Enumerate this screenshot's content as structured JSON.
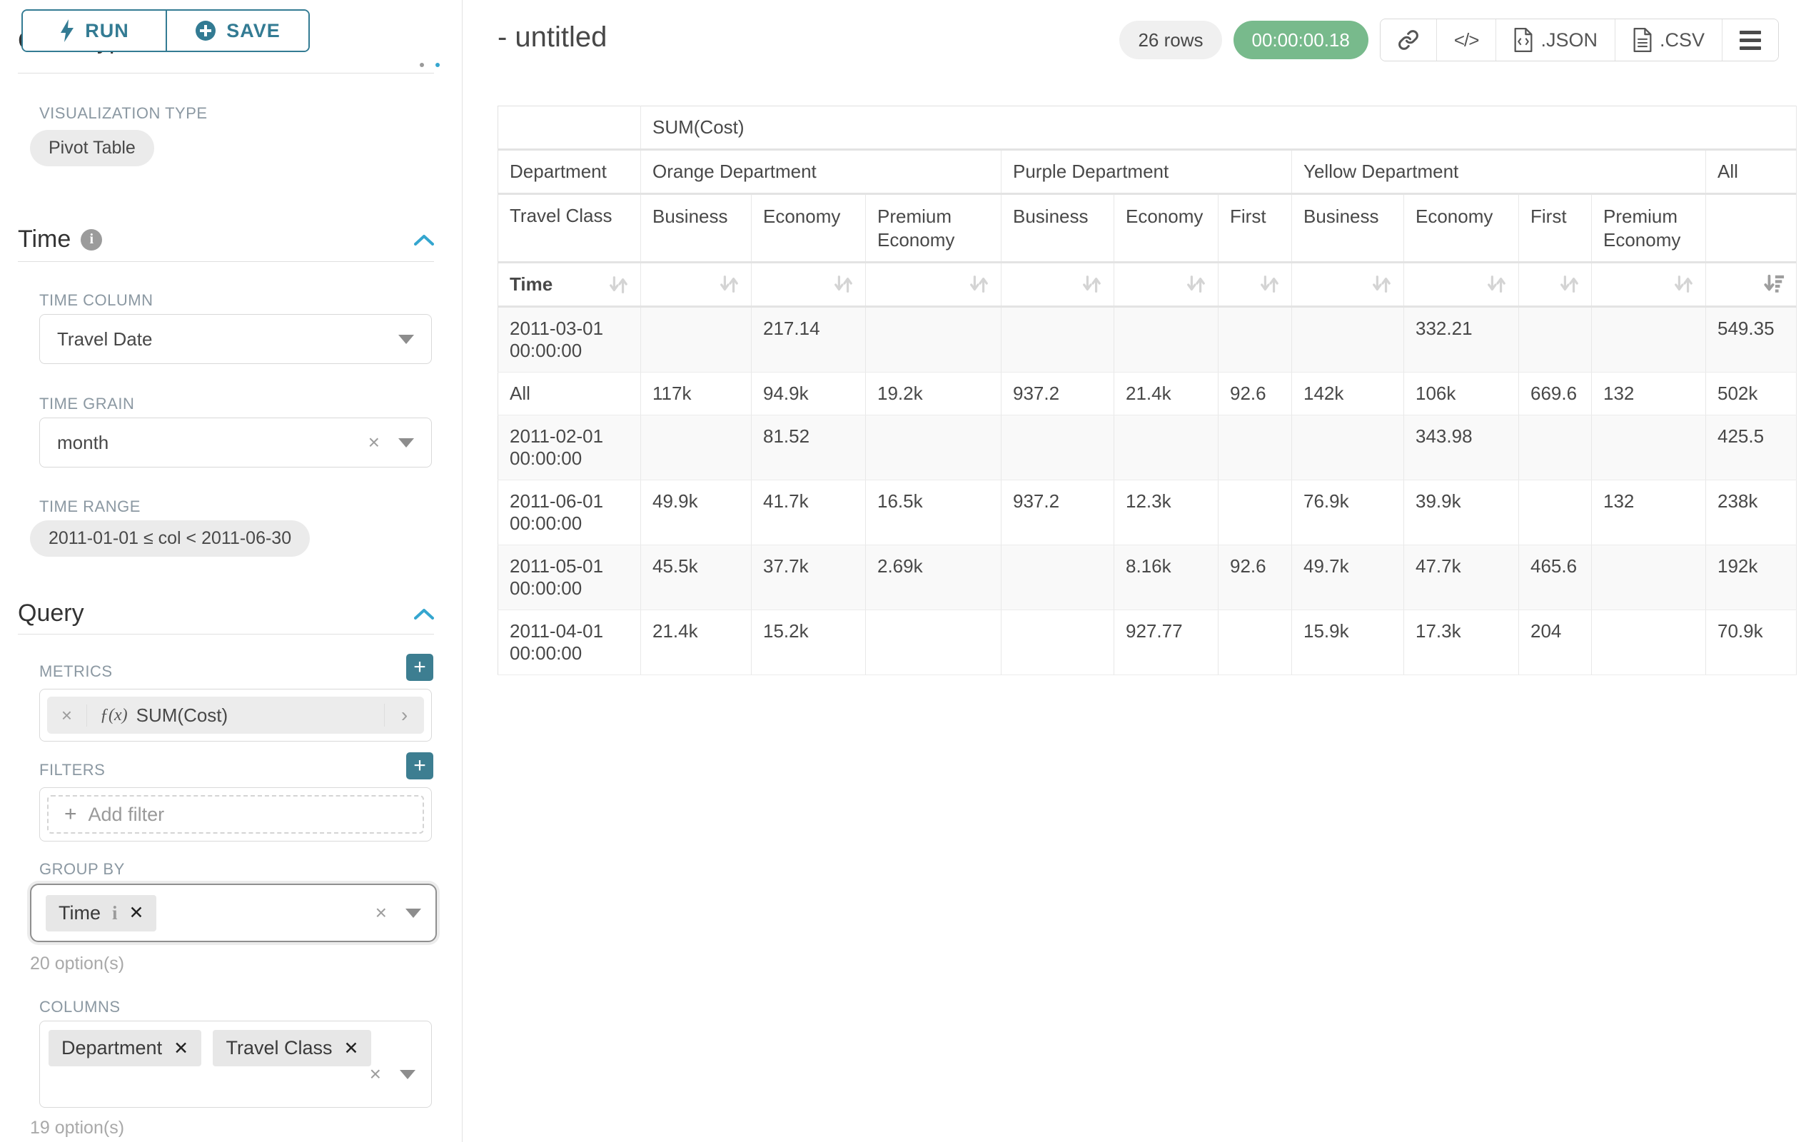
{
  "sidebar": {
    "run_button": "RUN",
    "save_button": "SAVE",
    "chart_type_heading": "Chart Type",
    "visualization_type_label": "VISUALIZATION TYPE",
    "visualization_type_value": "Pivot Table",
    "time": {
      "heading": "Time",
      "time_column_label": "TIME COLUMN",
      "time_column_value": "Travel Date",
      "time_grain_label": "TIME GRAIN",
      "time_grain_value": "month",
      "time_range_label": "TIME RANGE",
      "time_range_value": "2011-01-01 ≤ col < 2011-06-30"
    },
    "query": {
      "heading": "Query",
      "metrics_label": "METRICS",
      "metric_prefix": "ƒ(x)",
      "metric_name": "SUM(Cost)",
      "filters_label": "FILTERS",
      "add_filter_placeholder": "Add filter",
      "group_by_label": "GROUP BY",
      "group_by_chips": [
        "Time"
      ],
      "group_by_hint": "20 option(s)",
      "columns_label": "COLUMNS",
      "columns_chips": [
        "Department",
        "Travel Class"
      ],
      "columns_hint": "19 option(s)"
    }
  },
  "header": {
    "title": "- untitled",
    "rows_badge": "26 rows",
    "timer_badge": "00:00:00.18",
    "export_json_label": ".JSON",
    "export_csv_label": ".CSV"
  },
  "colors": {
    "accent_teal": "#337b93",
    "plus_teal": "#3d7e91",
    "chevron_blue": "#35a6cf",
    "timer_green": "#78ba8c"
  },
  "chart_data": {
    "type": "table",
    "metric_header": "SUM(Cost)",
    "corner": {
      "row2": "Department",
      "row3": "Travel Class",
      "row4": "Time"
    },
    "column_groups": [
      {
        "label": "Orange Department",
        "cols": [
          "Business",
          "Economy",
          "Premium Economy"
        ]
      },
      {
        "label": "Purple Department",
        "cols": [
          "Business",
          "Economy",
          "First"
        ]
      },
      {
        "label": "Yellow Department",
        "cols": [
          "Business",
          "Economy",
          "First",
          "Premium Economy"
        ]
      },
      {
        "label": "All",
        "cols": [
          ""
        ]
      }
    ],
    "sorted_leaf_index": 10,
    "sort_direction": "descending",
    "rows": [
      {
        "label": "2011-03-01 00:00:00",
        "values": [
          "",
          "217.14",
          "",
          "",
          "",
          "",
          "",
          "332.21",
          "",
          "",
          "549.35"
        ]
      },
      {
        "label": "All",
        "values": [
          "117k",
          "94.9k",
          "19.2k",
          "937.2",
          "21.4k",
          "92.6",
          "142k",
          "106k",
          "669.6",
          "132",
          "502k"
        ]
      },
      {
        "label": "2011-02-01 00:00:00",
        "values": [
          "",
          "81.52",
          "",
          "",
          "",
          "",
          "",
          "343.98",
          "",
          "",
          "425.5"
        ]
      },
      {
        "label": "2011-06-01 00:00:00",
        "values": [
          "49.9k",
          "41.7k",
          "16.5k",
          "937.2",
          "12.3k",
          "",
          "76.9k",
          "39.9k",
          "",
          "132",
          "238k"
        ]
      },
      {
        "label": "2011-05-01 00:00:00",
        "values": [
          "45.5k",
          "37.7k",
          "2.69k",
          "",
          "8.16k",
          "92.6",
          "49.7k",
          "47.7k",
          "465.6",
          "",
          "192k"
        ]
      },
      {
        "label": "2011-04-01 00:00:00",
        "values": [
          "21.4k",
          "15.2k",
          "",
          "",
          "927.77",
          "",
          "15.9k",
          "17.3k",
          "204",
          "",
          "70.9k"
        ]
      }
    ]
  }
}
